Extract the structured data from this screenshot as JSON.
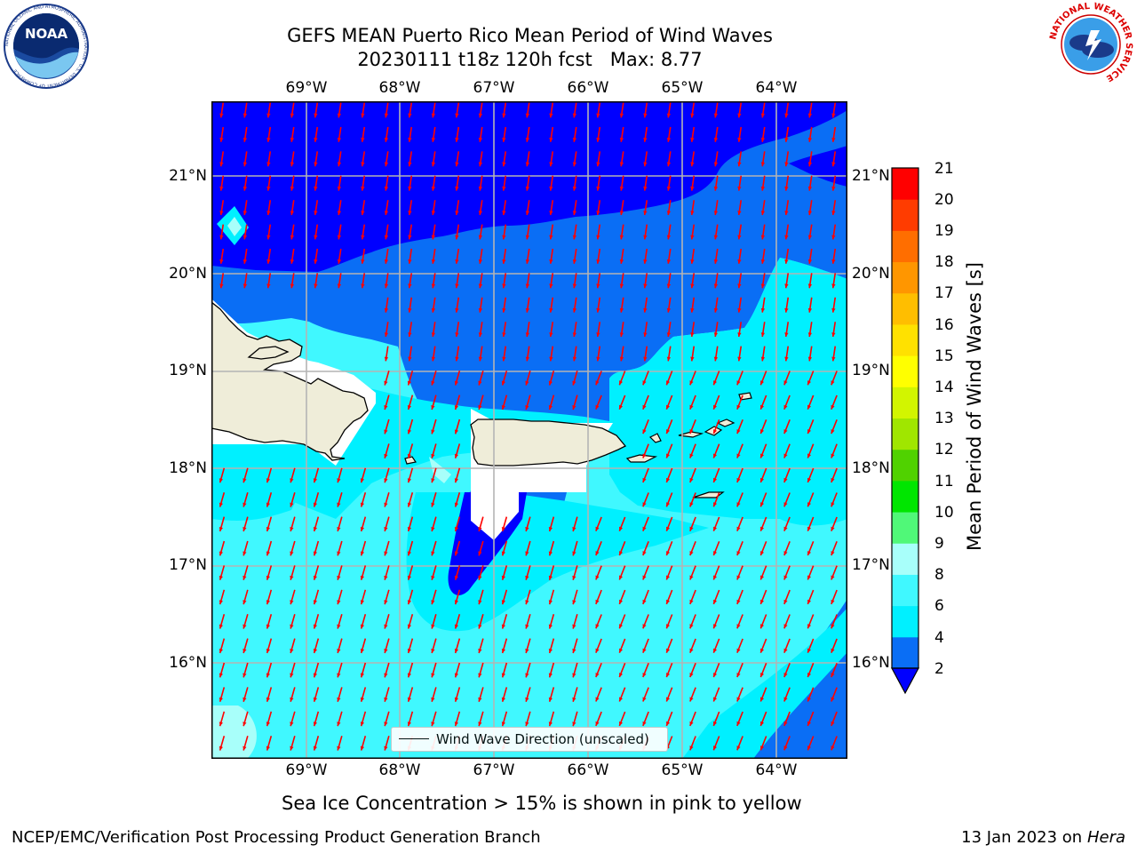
{
  "title": {
    "line1": "GEFS MEAN Puerto Rico Mean Period of Wind Waves",
    "line2": "20230111 t18z 120h fcst   Max: 8.77"
  },
  "logos": {
    "noaa_text": "NOAA",
    "noaa_ring": "NATIONAL OCEANIC AND ATMOSPHERIC ADMINISTRATION · U.S. DEPARTMENT OF COMMERCE",
    "nws_ring": "NATIONAL WEATHER SERVICE"
  },
  "map": {
    "lon_labels": [
      "69°W",
      "68°W",
      "67°W",
      "66°W",
      "65°W",
      "64°W"
    ],
    "lat_labels": [
      "21°N",
      "20°N",
      "19°N",
      "18°N",
      "17°N",
      "16°N"
    ],
    "grid": true,
    "legend_text": "Wind Wave Direction (unscaled)",
    "arrow_color": "#ff0000",
    "land_color": "#efedd9",
    "colors": {
      "deep_blue": "#0000ff",
      "mid_blue": "#0a6ef5",
      "cyan": "#00f0ff",
      "light_cyan": "#40f8ff",
      "pale_cyan": "#a8fffa"
    }
  },
  "colorbar": {
    "label": "Mean Period of Wind Waves [s]",
    "ticks": [
      "2",
      "4",
      "6",
      "8",
      "9",
      "10",
      "11",
      "12",
      "13",
      "14",
      "15",
      "16",
      "17",
      "18",
      "19",
      "20",
      "21"
    ],
    "colors": [
      "#0a6ef5",
      "#00f0ff",
      "#40f8ff",
      "#a8fffa",
      "#50f878",
      "#00e600",
      "#50d200",
      "#a0e600",
      "#d2f500",
      "#ffff00",
      "#ffe100",
      "#ffbe00",
      "#ff9600",
      "#ff6e00",
      "#ff3c00",
      "#ff0000"
    ],
    "extend_color": "#0000ff"
  },
  "notes": {
    "sea_ice": "Sea Ice Concentration > 15% is shown in pink to yellow",
    "footer_left": "NCEP/EMC/Verification Post Processing Product Generation Branch",
    "footer_date": "13 Jan 2023 on ",
    "footer_machine": "Hera"
  }
}
